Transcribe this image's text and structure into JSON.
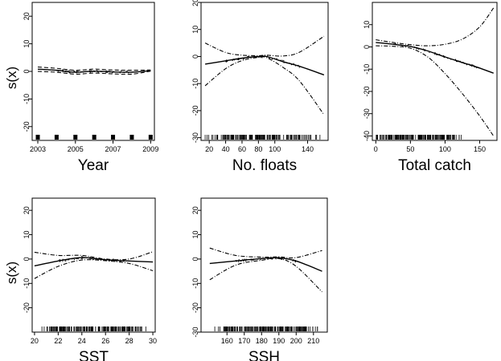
{
  "figure": {
    "ylabel": "s(x)"
  },
  "chart_data": [
    {
      "type": "line",
      "xlabel": "Year",
      "ylabel": "s(x)",
      "xlim": [
        2002.7,
        2009.2
      ],
      "ylim": [
        -25,
        25
      ],
      "xticks": [
        2003,
        2005,
        2007,
        2009
      ],
      "yticks": [
        -20,
        -10,
        0,
        10,
        20
      ],
      "x": [
        2003,
        2004,
        2005,
        2006,
        2007,
        2008,
        2009
      ],
      "series": [
        {
          "style": "solid",
          "values": [
            0.8,
            0.4,
            -0.3,
            0.1,
            -0.2,
            -0.3,
            0.3
          ]
        },
        {
          "style": "dashed",
          "values": [
            1.6,
            1.1,
            0.4,
            0.8,
            0.5,
            0.4,
            0.5
          ]
        },
        {
          "style": "dashed",
          "values": [
            0.0,
            -0.3,
            -1.0,
            -0.6,
            -0.9,
            -1.0,
            0.1
          ]
        }
      ],
      "rug": [
        2003,
        2004,
        2005,
        2006,
        2007,
        2008,
        2009
      ]
    },
    {
      "type": "line",
      "xlabel": "No. floats",
      "ylim": [
        -31,
        20
      ],
      "xlim": [
        10,
        165
      ],
      "xticks": [
        20,
        40,
        60,
        80,
        100,
        140
      ],
      "yticks": [
        -30,
        -20,
        -10,
        0,
        10,
        20
      ],
      "x": [
        15,
        40,
        60,
        80,
        90,
        110,
        130,
        160
      ],
      "series": [
        {
          "style": "solid",
          "values": [
            -2.8,
            -1.6,
            -0.6,
            0.0,
            0.0,
            -1.9,
            -3.6,
            -6.8
          ]
        },
        {
          "style": "dotdash",
          "values": [
            5.0,
            1.5,
            0.5,
            0.3,
            0.5,
            0.2,
            1.6,
            7.5
          ]
        },
        {
          "style": "dotdash",
          "values": [
            -10.8,
            -4.5,
            -1.5,
            -0.3,
            -0.4,
            -4.0,
            -9.0,
            -21.5
          ]
        }
      ],
      "rug_range": [
        15,
        160
      ]
    },
    {
      "type": "line",
      "xlabel": "Total catch",
      "ylim": [
        -42,
        20
      ],
      "xlim": [
        -5,
        175
      ],
      "xticks": [
        0,
        50,
        100,
        150
      ],
      "yticks": [
        -40,
        -30,
        -20,
        -10,
        0,
        10
      ],
      "x": [
        0,
        25,
        50,
        75,
        100,
        125,
        150,
        170
      ],
      "series": [
        {
          "style": "solid",
          "values": [
            2.0,
            1.2,
            0.2,
            -1.8,
            -4.5,
            -7.0,
            -9.5,
            -11.8
          ]
        },
        {
          "style": "dotdash",
          "values": [
            3.2,
            2.0,
            1.0,
            0.5,
            1.2,
            3.5,
            9.0,
            17.5
          ]
        },
        {
          "style": "dotdash",
          "values": [
            0.5,
            0.3,
            -0.6,
            -4.5,
            -12.0,
            -21.0,
            -31.0,
            -40.0
          ]
        }
      ],
      "rug_range": [
        0,
        125
      ]
    },
    {
      "type": "line",
      "xlabel": "SST",
      "ylabel": "s(x)",
      "ylim": [
        -30,
        25
      ],
      "xlim": [
        19.8,
        30.2
      ],
      "xticks": [
        20,
        22,
        24,
        26,
        28,
        30
      ],
      "yticks": [
        -20,
        -10,
        0,
        10,
        20
      ],
      "x": [
        20,
        22,
        24,
        26,
        28,
        30
      ],
      "series": [
        {
          "style": "solid",
          "values": [
            -2.8,
            -0.8,
            0.6,
            -0.3,
            -0.8,
            -1.2
          ]
        },
        {
          "style": "dotdash",
          "values": [
            2.8,
            1.5,
            1.5,
            0.0,
            0.0,
            3.0
          ]
        },
        {
          "style": "dotdash",
          "values": [
            -8.0,
            -3.0,
            -0.4,
            -0.7,
            -1.8,
            -4.8
          ]
        }
      ],
      "rug_range": [
        20.3,
        29.6
      ]
    },
    {
      "type": "line",
      "xlabel": "SSH",
      "ylim": [
        -30,
        25
      ],
      "xlim": [
        145,
        218
      ],
      "xticks": [
        160,
        170,
        180,
        190,
        200,
        210
      ],
      "yticks": [
        -30,
        -20,
        -10,
        0,
        10,
        20
      ],
      "x": [
        150,
        165,
        180,
        190,
        200,
        215
      ],
      "series": [
        {
          "style": "solid",
          "values": [
            -1.8,
            -0.8,
            0.2,
            0.5,
            -0.8,
            -5.0
          ]
        },
        {
          "style": "dotdash",
          "values": [
            4.5,
            1.5,
            0.8,
            0.9,
            0.6,
            3.5
          ]
        },
        {
          "style": "dotdash",
          "values": [
            -8.5,
            -2.5,
            -0.5,
            0.2,
            -3.0,
            -13.5
          ]
        }
      ],
      "rug_range": [
        152,
        215
      ]
    }
  ]
}
